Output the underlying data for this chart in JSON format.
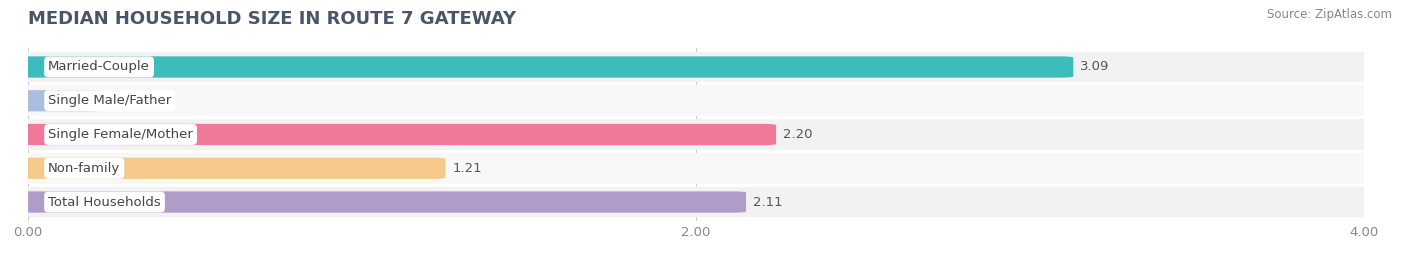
{
  "title": "MEDIAN HOUSEHOLD SIZE IN ROUTE 7 GATEWAY",
  "source": "Source: ZipAtlas.com",
  "categories": [
    "Married-Couple",
    "Single Male/Father",
    "Single Female/Mother",
    "Non-family",
    "Total Households"
  ],
  "values": [
    3.09,
    0.0,
    2.2,
    1.21,
    2.11
  ],
  "bar_colors": [
    "#3dbcbc",
    "#aabfdf",
    "#f07898",
    "#f5c98a",
    "#b09cc8"
  ],
  "row_bg_color": "#f0f0f0",
  "row_alt_color": "#ffffff",
  "xlim": [
    0,
    4.0
  ],
  "xticks": [
    0.0,
    2.0,
    4.0
  ],
  "xtick_labels": [
    "0.00",
    "2.00",
    "4.00"
  ],
  "title_fontsize": 13,
  "label_fontsize": 9.5,
  "value_fontsize": 9.5,
  "source_fontsize": 8.5,
  "title_color": "#4a5568",
  "label_color": "#444444",
  "value_color": "#555555",
  "source_color": "#888888",
  "grid_color": "#cccccc"
}
